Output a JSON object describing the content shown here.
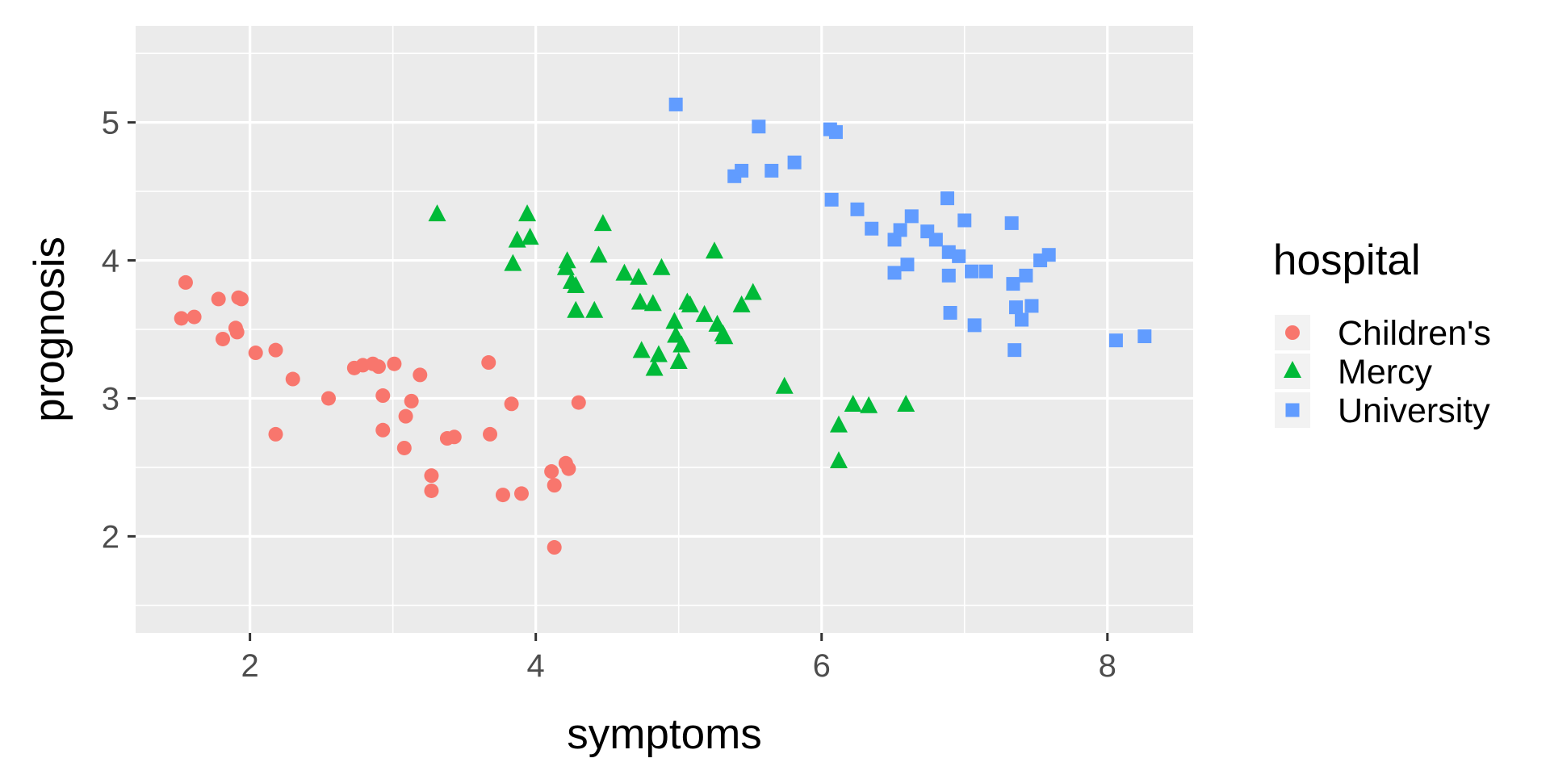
{
  "chart_data": {
    "type": "scatter",
    "xlabel": "symptoms",
    "ylabel": "prognosis",
    "xlim": [
      1.2,
      8.6
    ],
    "ylim": [
      1.3,
      5.7
    ],
    "x_ticks": [
      2,
      4,
      6,
      8
    ],
    "y_ticks": [
      2,
      3,
      4,
      5
    ],
    "grid": true,
    "legend": {
      "title": "hospital",
      "placement": "right"
    },
    "series": [
      {
        "name": "Children's",
        "color": "#F8766D",
        "shape": "circle",
        "points": [
          [
            1.52,
            3.58
          ],
          [
            1.61,
            3.59
          ],
          [
            1.55,
            3.84
          ],
          [
            1.78,
            3.72
          ],
          [
            1.81,
            3.43
          ],
          [
            1.9,
            3.51
          ],
          [
            1.91,
            3.48
          ],
          [
            1.92,
            3.73
          ],
          [
            1.94,
            3.72
          ],
          [
            2.04,
            3.33
          ],
          [
            2.18,
            3.35
          ],
          [
            2.18,
            2.74
          ],
          [
            2.3,
            3.14
          ],
          [
            2.55,
            3.0
          ],
          [
            2.73,
            3.22
          ],
          [
            2.79,
            3.24
          ],
          [
            2.86,
            3.25
          ],
          [
            2.9,
            3.23
          ],
          [
            2.93,
            3.02
          ],
          [
            2.93,
            2.77
          ],
          [
            3.01,
            3.25
          ],
          [
            3.08,
            2.64
          ],
          [
            3.09,
            2.87
          ],
          [
            3.13,
            2.98
          ],
          [
            3.19,
            3.17
          ],
          [
            3.27,
            2.44
          ],
          [
            3.27,
            2.33
          ],
          [
            3.38,
            2.71
          ],
          [
            3.43,
            2.72
          ],
          [
            3.67,
            3.26
          ],
          [
            3.68,
            2.74
          ],
          [
            3.77,
            2.3
          ],
          [
            3.83,
            2.96
          ],
          [
            3.9,
            2.31
          ],
          [
            4.11,
            2.47
          ],
          [
            4.13,
            2.37
          ],
          [
            4.13,
            1.92
          ],
          [
            4.21,
            2.53
          ],
          [
            4.23,
            2.49
          ],
          [
            4.3,
            2.97
          ]
        ]
      },
      {
        "name": "Mercy",
        "color": "#00BA38",
        "shape": "triangle",
        "points": [
          [
            3.31,
            4.33
          ],
          [
            3.84,
            3.97
          ],
          [
            3.87,
            4.14
          ],
          [
            3.94,
            4.33
          ],
          [
            3.96,
            4.16
          ],
          [
            4.21,
            3.94
          ],
          [
            4.22,
            3.99
          ],
          [
            4.25,
            3.84
          ],
          [
            4.28,
            3.81
          ],
          [
            4.28,
            3.63
          ],
          [
            4.41,
            3.63
          ],
          [
            4.44,
            4.03
          ],
          [
            4.47,
            4.26
          ],
          [
            4.62,
            3.9
          ],
          [
            4.72,
            3.87
          ],
          [
            4.73,
            3.69
          ],
          [
            4.74,
            3.34
          ],
          [
            4.82,
            3.68
          ],
          [
            4.83,
            3.21
          ],
          [
            4.86,
            3.31
          ],
          [
            4.88,
            3.94
          ],
          [
            4.97,
            3.55
          ],
          [
            4.98,
            3.45
          ],
          [
            5.0,
            3.26
          ],
          [
            5.02,
            3.38
          ],
          [
            5.06,
            3.69
          ],
          [
            5.08,
            3.67
          ],
          [
            5.18,
            3.6
          ],
          [
            5.25,
            4.06
          ],
          [
            5.27,
            3.53
          ],
          [
            5.31,
            3.46
          ],
          [
            5.32,
            3.44
          ],
          [
            5.44,
            3.67
          ],
          [
            5.52,
            3.76
          ],
          [
            5.74,
            3.08
          ],
          [
            6.12,
            2.8
          ],
          [
            6.12,
            2.54
          ],
          [
            6.22,
            2.95
          ],
          [
            6.33,
            2.94
          ],
          [
            6.59,
            2.95
          ]
        ]
      },
      {
        "name": "University",
        "color": "#619CFF",
        "shape": "square",
        "points": [
          [
            4.98,
            5.13
          ],
          [
            5.39,
            4.61
          ],
          [
            5.44,
            4.65
          ],
          [
            5.56,
            4.97
          ],
          [
            5.65,
            4.65
          ],
          [
            5.81,
            4.71
          ],
          [
            6.06,
            4.95
          ],
          [
            6.1,
            4.93
          ],
          [
            6.07,
            4.44
          ],
          [
            6.25,
            4.37
          ],
          [
            6.35,
            4.23
          ],
          [
            6.51,
            4.15
          ],
          [
            6.51,
            3.91
          ],
          [
            6.55,
            4.22
          ],
          [
            6.6,
            3.97
          ],
          [
            6.63,
            4.32
          ],
          [
            6.74,
            4.21
          ],
          [
            6.8,
            4.15
          ],
          [
            6.88,
            4.45
          ],
          [
            6.89,
            4.06
          ],
          [
            6.89,
            3.89
          ],
          [
            6.9,
            3.62
          ],
          [
            6.96,
            4.03
          ],
          [
            7.0,
            4.29
          ],
          [
            7.05,
            3.92
          ],
          [
            7.07,
            3.53
          ],
          [
            7.15,
            3.92
          ],
          [
            7.33,
            4.27
          ],
          [
            7.34,
            3.83
          ],
          [
            7.35,
            3.35
          ],
          [
            7.36,
            3.66
          ],
          [
            7.4,
            3.57
          ],
          [
            7.43,
            3.89
          ],
          [
            7.47,
            3.67
          ],
          [
            7.53,
            4.0
          ],
          [
            7.59,
            4.04
          ],
          [
            8.06,
            3.42
          ],
          [
            8.26,
            3.45
          ]
        ]
      }
    ]
  }
}
